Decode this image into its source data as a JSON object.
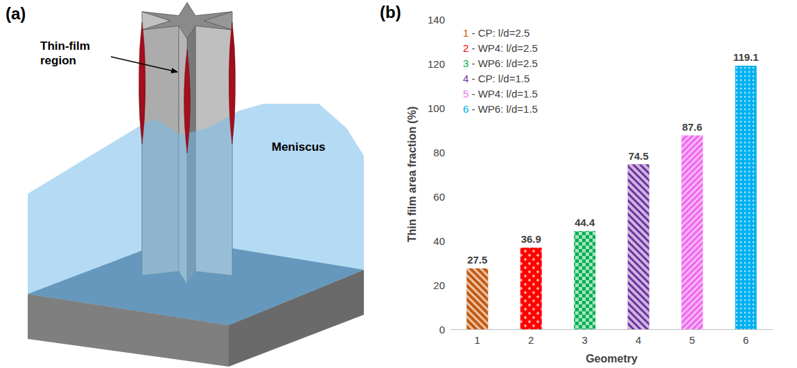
{
  "diagram": {
    "panel_label": "(a)",
    "labels": {
      "thin_film": "Thin-film region",
      "meniscus": "Meniscus"
    }
  },
  "chart_data": {
    "panel_label": "(b)",
    "type": "bar",
    "categories": [
      "1",
      "2",
      "3",
      "4",
      "5",
      "6"
    ],
    "values": [
      27.5,
      36.9,
      44.4,
      74.5,
      87.6,
      119.1
    ],
    "colors": [
      "#c55a11",
      "#ff0000",
      "#00b050",
      "#7030a0",
      "#f070f0",
      "#00b0f0"
    ],
    "x_label": "Geometry",
    "y_label": "Thin film area fraction (%)",
    "ylim": [
      0,
      140
    ],
    "yticks": [
      0,
      20,
      40,
      60,
      80,
      100,
      120,
      140
    ],
    "grid": false,
    "data_labels": true,
    "annotations": [
      "1 - CP: l/d=2.5",
      "2 - WP4: l/d=2.5",
      "3 - WP6: l/d=2.5",
      "4 - CP: l/d=1.5",
      "5 - WP4: l/d=1.5",
      "6 - WP6: l/d=1.5"
    ]
  }
}
